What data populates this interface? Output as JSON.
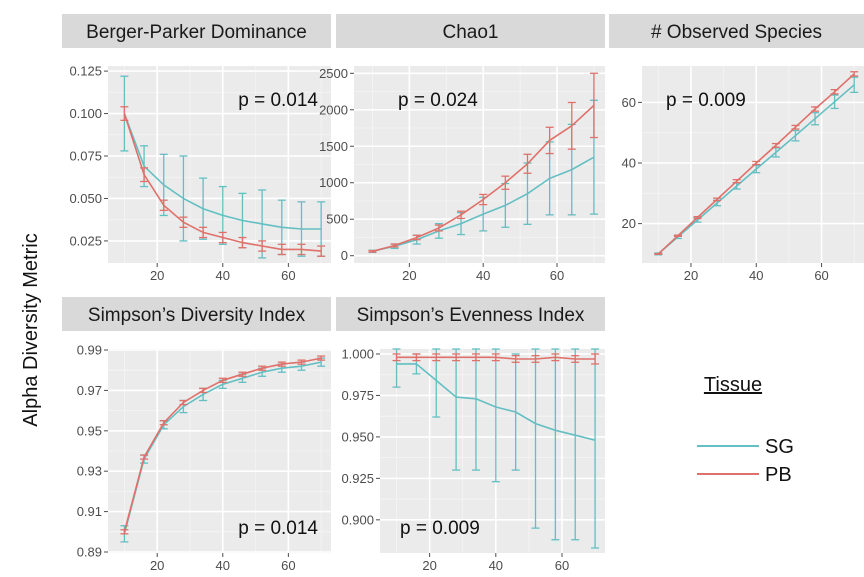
{
  "figure": {
    "y_axis_label": "Alpha Diversity Metric",
    "legend": {
      "title": "Tissue",
      "entries": [
        {
          "label": "SG",
          "color": "#63bfc2"
        },
        {
          "label": "PB",
          "color": "#e0706a"
        }
      ]
    }
  },
  "chart_data": [
    {
      "type": "line",
      "title": "Berger-Parker Dominance",
      "annotation": "p = 0.014",
      "xlim": [
        5,
        73
      ],
      "ylim": [
        0.012,
        0.128
      ],
      "x_ticks": [
        20,
        40,
        60
      ],
      "y_ticks": [
        0.025,
        0.05,
        0.075,
        0.1,
        0.125
      ],
      "y_tick_labels": [
        "0.025",
        "0.050",
        "0.075",
        "0.100",
        "0.125"
      ],
      "error_bars": true,
      "series": [
        {
          "name": "SG",
          "color": "#63bfc2",
          "x": [
            10,
            16,
            22,
            28,
            34,
            40,
            46,
            52,
            58,
            64,
            70
          ],
          "y": [
            0.1,
            0.069,
            0.058,
            0.05,
            0.044,
            0.04,
            0.037,
            0.035,
            0.033,
            0.032,
            0.032
          ],
          "err": [
            0.022,
            0.012,
            0.018,
            0.025,
            0.018,
            0.017,
            0.016,
            0.02,
            0.016,
            0.016,
            0.016
          ]
        },
        {
          "name": "PB",
          "color": "#e0706a",
          "x": [
            10,
            16,
            22,
            28,
            34,
            40,
            46,
            52,
            58,
            64,
            70
          ],
          "y": [
            0.1,
            0.064,
            0.046,
            0.036,
            0.03,
            0.027,
            0.024,
            0.022,
            0.02,
            0.02,
            0.019
          ],
          "err": [
            0.004,
            0.004,
            0.003,
            0.003,
            0.003,
            0.003,
            0.003,
            0.003,
            0.003,
            0.003,
            0.003
          ]
        }
      ]
    },
    {
      "type": "line",
      "title": "Chao1",
      "annotation": "p = 0.024",
      "xlim": [
        5,
        73
      ],
      "ylim": [
        -100,
        2600
      ],
      "x_ticks": [
        20,
        40,
        60
      ],
      "y_ticks": [
        0,
        500,
        1000,
        1500,
        2000,
        2500
      ],
      "y_tick_labels": [
        "0",
        "500",
        "1000",
        "1500",
        "2000",
        "2500"
      ],
      "error_bars": true,
      "series": [
        {
          "name": "SG",
          "color": "#63bfc2",
          "x": [
            10,
            16,
            22,
            28,
            34,
            40,
            46,
            52,
            58,
            64,
            70
          ],
          "y": [
            60,
            130,
            220,
            340,
            440,
            570,
            690,
            850,
            1060,
            1180,
            1350
          ],
          "err": [
            15,
            30,
            60,
            100,
            150,
            230,
            300,
            420,
            500,
            620,
            780
          ]
        },
        {
          "name": "PB",
          "color": "#e0706a",
          "x": [
            10,
            16,
            22,
            28,
            34,
            40,
            46,
            52,
            58,
            64,
            70
          ],
          "y": [
            60,
            140,
            250,
            380,
            560,
            770,
            1000,
            1260,
            1580,
            1780,
            2060
          ],
          "err": [
            10,
            20,
            30,
            40,
            50,
            70,
            90,
            130,
            180,
            320,
            440
          ]
        }
      ]
    },
    {
      "type": "line",
      "title": "# Observed Species",
      "annotation": "p = 0.009",
      "xlim": [
        5,
        73
      ],
      "ylim": [
        7,
        72
      ],
      "x_ticks": [
        20,
        40,
        60
      ],
      "y_ticks": [
        20,
        40,
        60
      ],
      "y_tick_labels": [
        "20",
        "40",
        "60"
      ],
      "error_bars": true,
      "series": [
        {
          "name": "SG",
          "color": "#63bfc2",
          "x": [
            10,
            16,
            22,
            28,
            34,
            40,
            46,
            52,
            58,
            64,
            70
          ],
          "y": [
            10,
            15.6,
            21.2,
            26.8,
            32.4,
            38,
            43.5,
            49,
            54.6,
            60.2,
            65.8
          ],
          "err": [
            0.3,
            0.5,
            0.7,
            0.9,
            1,
            1.2,
            1.5,
            1.7,
            2,
            2.2,
            2.5
          ]
        },
        {
          "name": "PB",
          "color": "#e0706a",
          "x": [
            10,
            16,
            22,
            28,
            34,
            40,
            46,
            52,
            58,
            64,
            70
          ],
          "y": [
            10,
            16,
            22,
            28,
            34,
            40,
            45.8,
            51.8,
            57.8,
            63.5,
            69.4
          ],
          "err": [
            0.1,
            0.2,
            0.3,
            0.4,
            0.5,
            0.5,
            0.6,
            0.6,
            0.7,
            0.7,
            0.7
          ]
        }
      ]
    },
    {
      "type": "line",
      "title": "Simpson’s Diversity Index",
      "annotation": "p = 0.014",
      "xlim": [
        5,
        73
      ],
      "ylim": [
        0.8895,
        0.9905
      ],
      "x_ticks": [
        20,
        40,
        60
      ],
      "y_ticks": [
        0.89,
        0.91,
        0.93,
        0.95,
        0.97,
        0.99
      ],
      "y_tick_labels": [
        "0.89",
        "0.91",
        "0.93",
        "0.95",
        "0.97",
        "0.99"
      ],
      "error_bars": true,
      "series": [
        {
          "name": "SG",
          "color": "#63bfc2",
          "x": [
            10,
            16,
            22,
            28,
            34,
            40,
            46,
            52,
            58,
            64,
            70
          ],
          "y": [
            0.899,
            0.936,
            0.953,
            0.962,
            0.968,
            0.973,
            0.976,
            0.979,
            0.981,
            0.982,
            0.984
          ],
          "err": [
            0.004,
            0.002,
            0.002,
            0.003,
            0.003,
            0.002,
            0.002,
            0.002,
            0.002,
            0.002,
            0.002
          ]
        },
        {
          "name": "PB",
          "color": "#e0706a",
          "x": [
            10,
            16,
            22,
            28,
            34,
            40,
            46,
            52,
            58,
            64,
            70
          ],
          "y": [
            0.9,
            0.937,
            0.954,
            0.964,
            0.97,
            0.975,
            0.978,
            0.981,
            0.983,
            0.984,
            0.986
          ],
          "err": [
            0.001,
            0.001,
            0.001,
            0.001,
            0.001,
            0.001,
            0.001,
            0.001,
            0.001,
            0.001,
            0.001
          ]
        }
      ]
    },
    {
      "type": "line",
      "title": "Simpson’s Evenness Index",
      "annotation": "p = 0.009",
      "xlim": [
        5,
        73
      ],
      "ylim": [
        0.88,
        1.003
      ],
      "x_ticks": [
        20,
        40,
        60
      ],
      "y_ticks": [
        0.9,
        0.925,
        0.95,
        0.975,
        1.0
      ],
      "y_tick_labels": [
        "0.900",
        "0.925",
        "0.950",
        "0.975",
        "1.000"
      ],
      "error_bars": true,
      "series": [
        {
          "name": "SG",
          "color": "#63bfc2",
          "x": [
            10,
            16,
            22,
            28,
            34,
            40,
            46,
            52,
            58,
            64,
            70
          ],
          "y": [
            0.994,
            0.994,
            0.984,
            0.974,
            0.973,
            0.968,
            0.965,
            0.958,
            0.954,
            0.951,
            0.948
          ],
          "err": [
            0.014,
            0.006,
            0.022,
            0.044,
            0.043,
            0.045,
            0.035,
            0.063,
            0.066,
            0.063,
            0.065
          ]
        },
        {
          "name": "PB",
          "color": "#e0706a",
          "x": [
            10,
            16,
            22,
            28,
            34,
            40,
            46,
            52,
            58,
            64,
            70
          ],
          "y": [
            0.998,
            0.998,
            0.998,
            0.998,
            0.998,
            0.998,
            0.997,
            0.997,
            0.998,
            0.997,
            0.997
          ],
          "err": [
            0.002,
            0.002,
            0.002,
            0.002,
            0.002,
            0.002,
            0.002,
            0.002,
            0.002,
            0.002,
            0.003
          ]
        }
      ]
    }
  ]
}
